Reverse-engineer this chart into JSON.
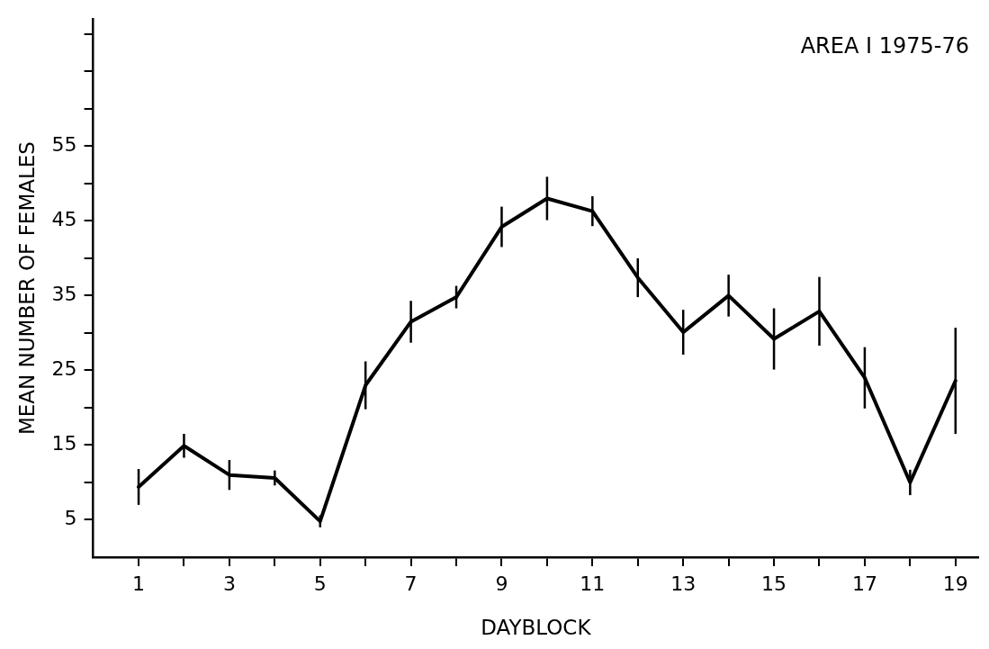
{
  "chart_data": {
    "type": "line",
    "title": "AREA I 1975-76",
    "xlabel": "DAYBLOCK",
    "ylabel": "MEAN NUMBER OF FEMALES",
    "x": [
      1,
      2,
      3,
      4,
      5,
      6,
      7,
      8,
      9,
      10,
      11,
      12,
      13,
      14,
      15,
      16,
      17,
      18,
      19
    ],
    "series": [
      {
        "color": "#000000",
        "values": [
          9.4,
          14.9,
          11,
          10.6,
          4.8,
          23,
          31.5,
          34.8,
          44.2,
          48,
          46.3,
          37.4,
          30.1,
          35,
          29.2,
          32.9,
          24,
          10,
          23.6
        ],
        "errors": [
          2.4,
          1.6,
          2,
          1,
          0.8,
          3.2,
          2.8,
          1.5,
          2.7,
          2.9,
          2,
          2.6,
          3,
          2.8,
          4.1,
          4.6,
          4.1,
          1.7,
          7.1
        ]
      }
    ],
    "xlim": [
      0,
      19.5
    ],
    "xticks": [
      1,
      {
        "value": 2,
        "label": null
      },
      3,
      {
        "value": 4,
        "label": null
      },
      5,
      {
        "value": 6,
        "label": null
      },
      7,
      {
        "value": 8,
        "label": null
      },
      9,
      {
        "value": 10,
        "label": null
      },
      11,
      {
        "value": 12,
        "label": null
      },
      13,
      {
        "value": 14,
        "label": null
      },
      15,
      {
        "value": 16,
        "label": null
      },
      17,
      {
        "value": 18,
        "label": null
      },
      19
    ],
    "ylim": [
      0,
      72
    ],
    "yticks": [
      5,
      {
        "value": 10,
        "label": null
      },
      15,
      {
        "value": 20,
        "label": null
      },
      25,
      {
        "value": 30,
        "label": null
      },
      35,
      {
        "value": 40,
        "label": null
      },
      45,
      {
        "value": 50,
        "label": null
      },
      55,
      {
        "value": 60,
        "label": null
      },
      {
        "value": 65,
        "label": null
      },
      {
        "value": 70,
        "label": null
      }
    ],
    "grid": false,
    "legend": false,
    "marker": "none",
    "line_style": "solid"
  }
}
